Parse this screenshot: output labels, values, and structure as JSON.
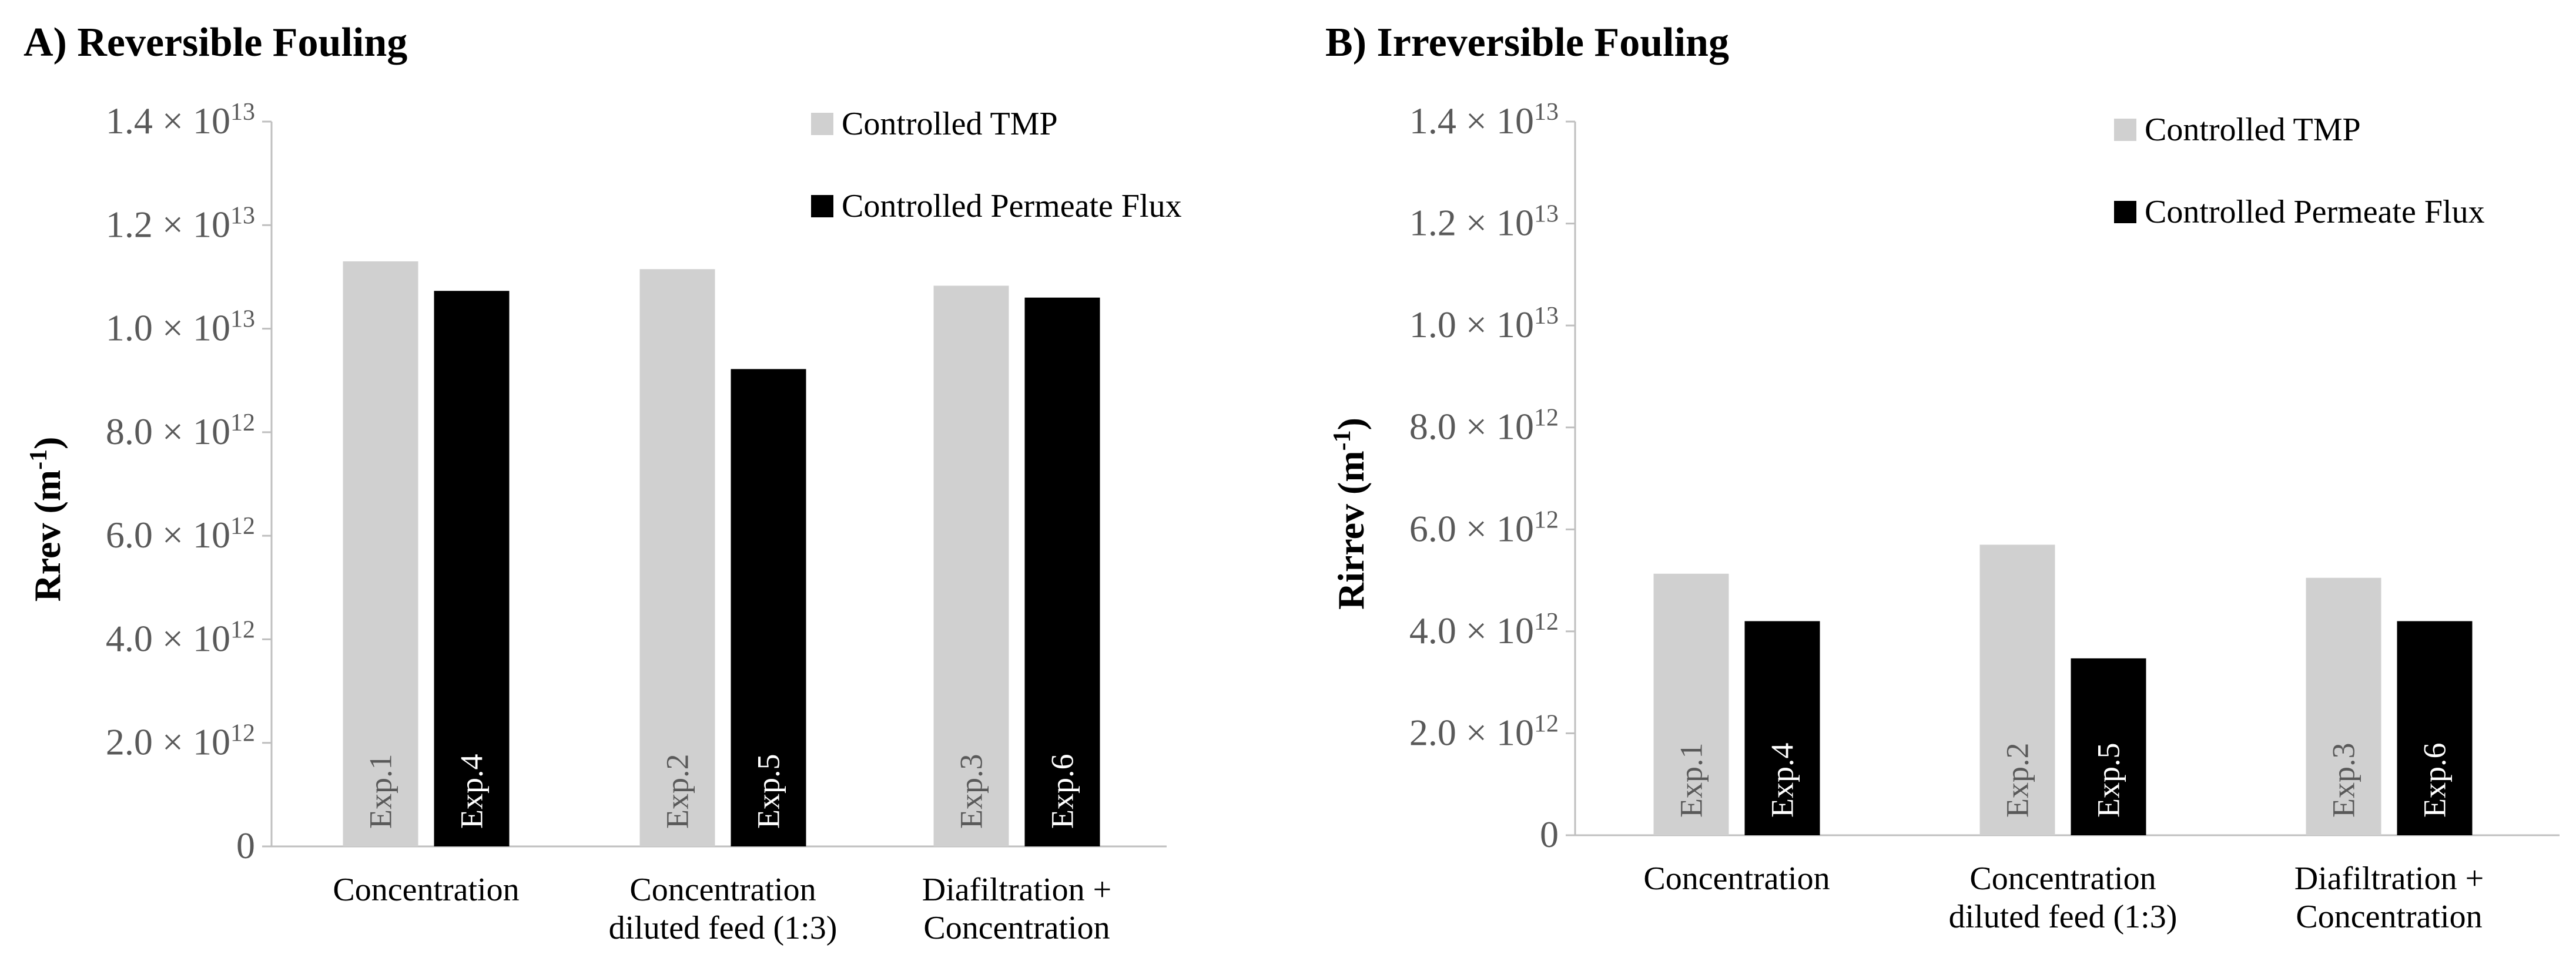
{
  "chart_data": [
    {
      "type": "bar",
      "title": "A) Reversible Fouling",
      "ylabel": "Rrev (m",
      "ylabel_sup": "-1",
      "ylabel_close": ")",
      "ylim": [
        0,
        14000000000000
      ],
      "yticks": [
        {
          "value": 0,
          "mantissa": "0",
          "times": "",
          "exp": ""
        },
        {
          "value": 2000000000000,
          "mantissa": "2.0",
          "times": " × 10",
          "exp": "12"
        },
        {
          "value": 4000000000000,
          "mantissa": "4.0",
          "times": " × 10",
          "exp": "12"
        },
        {
          "value": 6000000000000,
          "mantissa": "6.0",
          "times": " × 10",
          "exp": "12"
        },
        {
          "value": 8000000000000,
          "mantissa": "8.0",
          "times": " × 10",
          "exp": "12"
        },
        {
          "value": 10000000000000,
          "mantissa": "1.0",
          "times": " × 10",
          "exp": "13"
        },
        {
          "value": 12000000000000,
          "mantissa": "1.2",
          "times": " × 10",
          "exp": "13"
        },
        {
          "value": 14000000000000,
          "mantissa": "1.4",
          "times": " × 10",
          "exp": "13"
        }
      ],
      "categories": [
        [
          "Concentration"
        ],
        [
          "Concentration",
          "diluted feed (1:3)"
        ],
        [
          "Diafiltration +",
          "Concentration"
        ]
      ],
      "series": [
        {
          "name": "Controlled TMP",
          "color": "#d0d0d0",
          "label_color": "#595959",
          "values": [
            11300000000000,
            11150000000000,
            10830000000000
          ],
          "labels": [
            "Exp.1",
            "Exp.2",
            "Exp.3"
          ]
        },
        {
          "name": "Controlled Permeate Flux",
          "color": "#000000",
          "label_color": "#ffffff",
          "values": [
            10730000000000,
            9220000000000,
            10600000000000
          ],
          "labels": [
            "Exp.4",
            "Exp.5",
            "Exp.6"
          ]
        }
      ],
      "legend_position": "top-right",
      "grid": false
    },
    {
      "type": "bar",
      "title": "B) Irreversible Fouling",
      "ylabel": "Rirrev (m",
      "ylabel_sup": "-1",
      "ylabel_close": ")",
      "ylim": [
        0,
        14000000000000
      ],
      "yticks": [
        {
          "value": 0,
          "mantissa": "0",
          "times": "",
          "exp": ""
        },
        {
          "value": 2000000000000,
          "mantissa": "2.0",
          "times": " × 10",
          "exp": "12"
        },
        {
          "value": 4000000000000,
          "mantissa": "4.0",
          "times": " × 10",
          "exp": "12"
        },
        {
          "value": 6000000000000,
          "mantissa": "6.0",
          "times": " × 10",
          "exp": "12"
        },
        {
          "value": 8000000000000,
          "mantissa": "8.0",
          "times": " × 10",
          "exp": "12"
        },
        {
          "value": 10000000000000,
          "mantissa": "1.0",
          "times": " × 10",
          "exp": "13"
        },
        {
          "value": 12000000000000,
          "mantissa": "1.2",
          "times": " × 10",
          "exp": "13"
        },
        {
          "value": 14000000000000,
          "mantissa": "1.4",
          "times": " × 10",
          "exp": "13"
        }
      ],
      "categories": [
        [
          "Concentration"
        ],
        [
          "Concentration",
          "diluted feed (1:3)"
        ],
        [
          "Diafiltration +",
          "Concentration"
        ]
      ],
      "series": [
        {
          "name": "Controlled TMP",
          "color": "#d0d0d0",
          "label_color": "#595959",
          "values": [
            5130000000000,
            5700000000000,
            5050000000000
          ],
          "labels": [
            "Exp.1",
            "Exp.2",
            "Exp.3"
          ]
        },
        {
          "name": "Controlled Permeate Flux",
          "color": "#000000",
          "label_color": "#ffffff",
          "values": [
            4200000000000,
            3470000000000,
            4200000000000
          ],
          "labels": [
            "Exp.4",
            "Exp.5",
            "Exp.6"
          ]
        }
      ],
      "legend_position": "top-right",
      "grid": false
    }
  ]
}
